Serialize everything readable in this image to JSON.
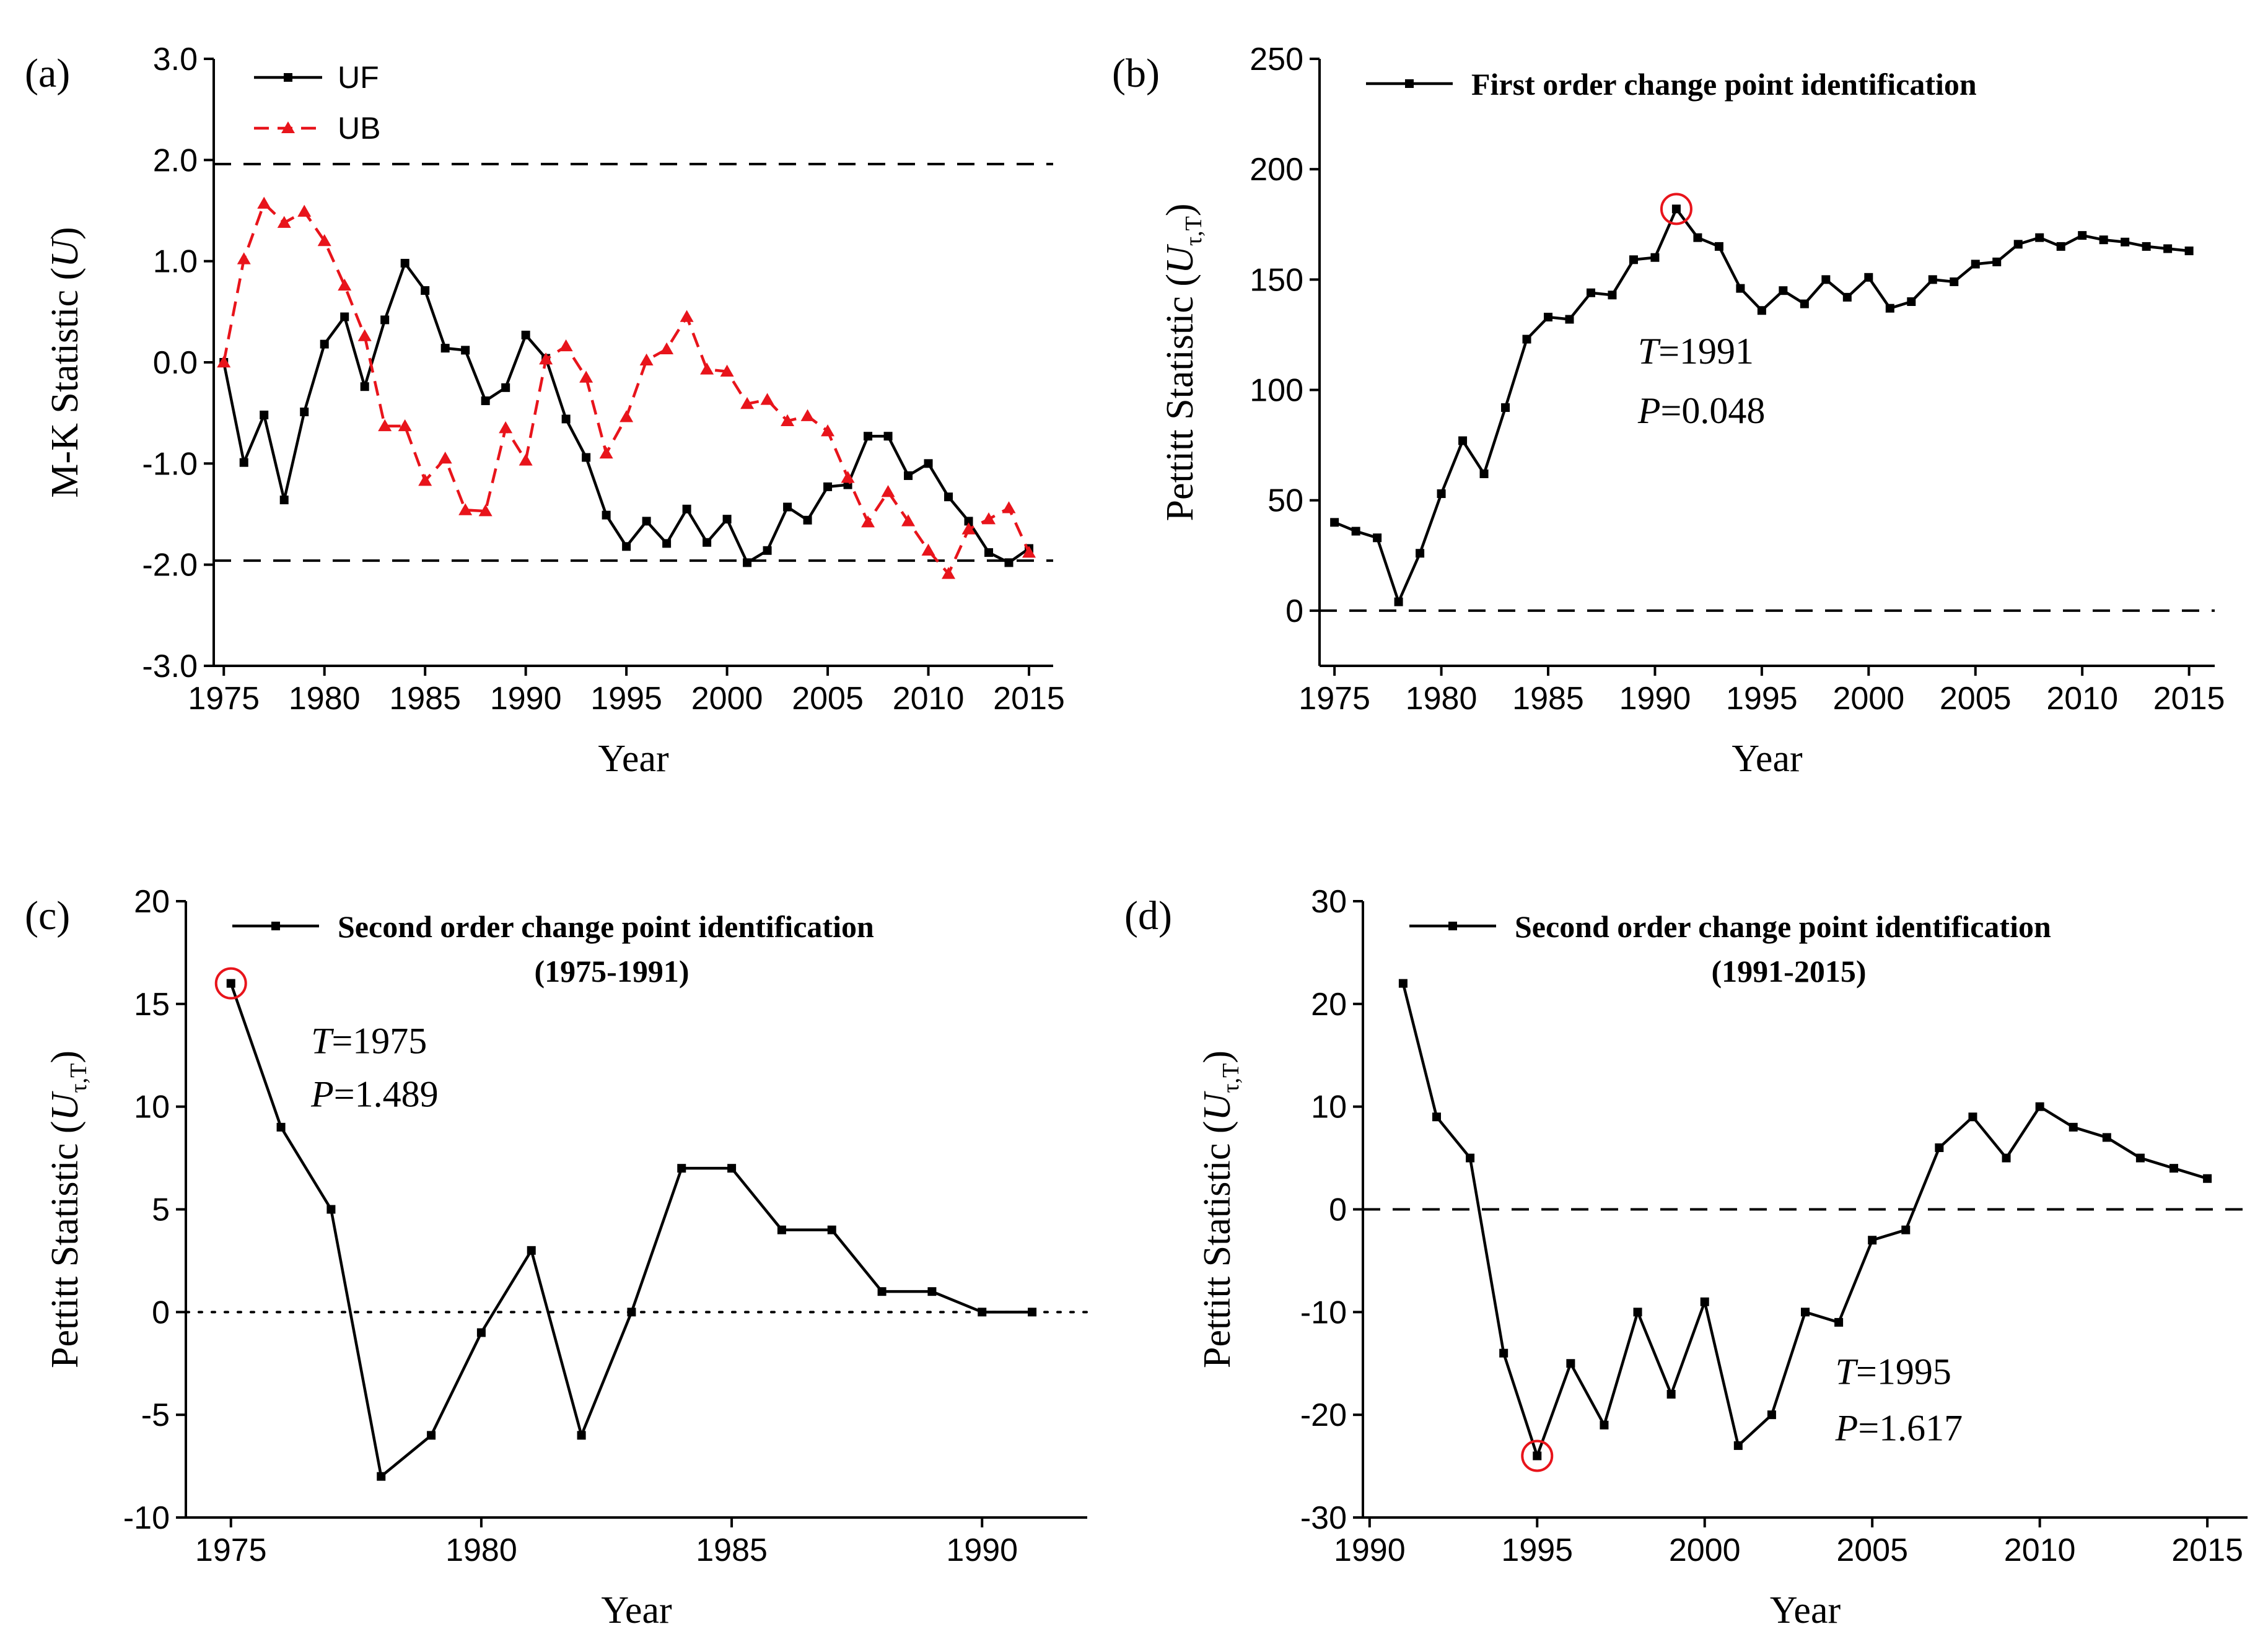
{
  "colors": {
    "uf": "#000000",
    "ub": "#e8141b",
    "marker_circle": "#e8141b"
  },
  "chart_data": [
    {
      "panel": "(a)",
      "type": "line",
      "xlabel": "Year",
      "ylabel_prefix": "M-K Statistic (",
      "ylabel_italic": "U",
      "ylabel_suffix": ")",
      "xlim": [
        1974.5,
        2016.2
      ],
      "ylim": [
        -3.0,
        3.0
      ],
      "xticks": [
        1975,
        1980,
        1985,
        1990,
        1995,
        2000,
        2005,
        2010,
        2015
      ],
      "yticks": [
        -3.0,
        -2.0,
        -1.0,
        0.0,
        1.0,
        2.0,
        3.0
      ],
      "ytick_labels": [
        "-3.0",
        "-2.0",
        "-1.0",
        "0.0",
        "1.0",
        "2.0",
        "3.0"
      ],
      "reference_lines": [
        1.96,
        -1.96
      ],
      "legend_position": "top-left",
      "series": [
        {
          "name": "UF",
          "style": "solid",
          "marker": "square",
          "x": [
            1975,
            1976,
            1977,
            1978,
            1979,
            1980,
            1981,
            1982,
            1983,
            1984,
            1985,
            1986,
            1987,
            1988,
            1989,
            1990,
            1991,
            1992,
            1993,
            1994,
            1995,
            1996,
            1997,
            1998,
            1999,
            2000,
            2001,
            2002,
            2003,
            2004,
            2005,
            2006,
            2007,
            2008,
            2009,
            2010,
            2011,
            2012,
            2013,
            2014,
            2015
          ],
          "y": [
            0.0,
            -0.99,
            -0.52,
            -1.36,
            -0.49,
            0.18,
            0.45,
            -0.24,
            0.42,
            0.98,
            0.71,
            0.14,
            0.12,
            -0.38,
            -0.25,
            0.27,
            0.04,
            -0.56,
            -0.94,
            -1.51,
            -1.82,
            -1.57,
            -1.79,
            -1.45,
            -1.78,
            -1.55,
            -1.98,
            -1.86,
            -1.43,
            -1.56,
            -1.23,
            -1.21,
            -0.73,
            -0.73,
            -1.12,
            -1.0,
            -1.33,
            -1.57,
            -1.88,
            -1.98,
            -1.84
          ]
        },
        {
          "name": "UB",
          "style": "dashed",
          "marker": "triangle",
          "x": [
            1975,
            1976,
            1977,
            1978,
            1979,
            1980,
            1981,
            1982,
            1983,
            1984,
            1985,
            1986,
            1987,
            1988,
            1989,
            1990,
            1991,
            1992,
            1993,
            1994,
            1995,
            1996,
            1997,
            1998,
            1999,
            2000,
            2001,
            2002,
            2003,
            2004,
            2005,
            2006,
            2007,
            2008,
            2009,
            2010,
            2011,
            2012,
            2013,
            2014,
            2015
          ],
          "y": [
            0.0,
            1.02,
            1.57,
            1.38,
            1.49,
            1.2,
            0.76,
            0.26,
            -0.63,
            -0.63,
            -1.17,
            -0.95,
            -1.46,
            -1.47,
            -0.65,
            -0.97,
            0.03,
            0.16,
            -0.15,
            -0.9,
            -0.54,
            0.02,
            0.13,
            0.45,
            -0.07,
            -0.09,
            -0.41,
            -0.37,
            -0.58,
            -0.53,
            -0.68,
            -1.14,
            -1.58,
            -1.28,
            -1.57,
            -1.86,
            -2.09,
            -1.65,
            -1.55,
            -1.44,
            -1.88
          ]
        }
      ]
    },
    {
      "panel": "(b)",
      "type": "line",
      "xlabel": "Year",
      "ylabel_prefix": "Pettitt Statistic (",
      "ylabel_italic": "U",
      "ylabel_sub": "τ,T",
      "ylabel_suffix": ")",
      "xlim": [
        1974.3,
        2016.2
      ],
      "ylim": [
        -25,
        250
      ],
      "xticks": [
        1975,
        1980,
        1985,
        1990,
        1995,
        2000,
        2005,
        2010,
        2015
      ],
      "yticks": [
        0,
        50,
        100,
        150,
        200,
        250
      ],
      "reference_lines": [
        0
      ],
      "legend_position": "top",
      "series": [
        {
          "name": "First order change point identification",
          "style": "solid",
          "marker": "square",
          "x": [
            1975,
            1976,
            1977,
            1978,
            1979,
            1980,
            1981,
            1982,
            1983,
            1984,
            1985,
            1986,
            1987,
            1988,
            1989,
            1990,
            1991,
            1992,
            1993,
            1994,
            1995,
            1996,
            1997,
            1998,
            1999,
            2000,
            2001,
            2002,
            2003,
            2004,
            2005,
            2006,
            2007,
            2008,
            2009,
            2010,
            2011,
            2012,
            2013,
            2014,
            2015
          ],
          "y": [
            40,
            36,
            33,
            4,
            26,
            53,
            77,
            62,
            92,
            123,
            133,
            132,
            144,
            143,
            159,
            160,
            182,
            169,
            165,
            146,
            136,
            145,
            139,
            150,
            142,
            151,
            137,
            140,
            150,
            149,
            157,
            158,
            166,
            169,
            165,
            170,
            168,
            167,
            165,
            164,
            163
          ]
        }
      ],
      "highlight": {
        "x": 1991,
        "y": 182
      },
      "annotation": {
        "t_label": "T",
        "t_value": "=1991",
        "p_label": "P",
        "p_value": "=0.048"
      }
    },
    {
      "panel": "(c)",
      "type": "line",
      "xlabel": "Year",
      "ylabel_prefix": "Pettitt Statistic (",
      "ylabel_italic": "U",
      "ylabel_sub": "τ,T",
      "ylabel_suffix": ")",
      "xlim": [
        1974.1,
        1992.1
      ],
      "ylim": [
        -10,
        20
      ],
      "xticks": [
        1975,
        1980,
        1985,
        1990
      ],
      "yticks": [
        -10,
        -5,
        0,
        5,
        10,
        15,
        20
      ],
      "reference_lines": [
        0
      ],
      "reference_style": "dotted",
      "legend_position": "top",
      "series": [
        {
          "name": "Second order change point identification",
          "name_line2": "(1975-1991)",
          "style": "solid",
          "marker": "square",
          "x": [
            1975,
            1976,
            1977,
            1978,
            1979,
            1980,
            1981,
            1982,
            1983,
            1984,
            1985,
            1986,
            1987,
            1988,
            1989,
            1990,
            1991
          ],
          "y": [
            16,
            9,
            5,
            -8,
            -6,
            -1,
            3,
            -6,
            0,
            7,
            7,
            4,
            4,
            1,
            1,
            0,
            0
          ]
        }
      ],
      "highlight": {
        "x": 1975,
        "y": 16
      },
      "annotation": {
        "t_label": "T",
        "t_value": "=1975",
        "p_label": "P",
        "p_value": "=1.489"
      }
    },
    {
      "panel": "(d)",
      "type": "line",
      "xlabel": "Year",
      "ylabel_prefix": "Pettitt Statistic (",
      "ylabel_italic": "U",
      "ylabel_sub": "τ,T",
      "ylabel_suffix": ")",
      "xlim": [
        1989.8,
        2016.2
      ],
      "ylim": [
        -30,
        30
      ],
      "xticks": [
        1990,
        1995,
        2000,
        2005,
        2010,
        2015
      ],
      "yticks": [
        -30,
        -20,
        -10,
        0,
        10,
        20,
        30
      ],
      "reference_lines": [
        0
      ],
      "legend_position": "top",
      "series": [
        {
          "name": "Second order change point identification",
          "name_line2": "(1991-2015)",
          "style": "solid",
          "marker": "square",
          "x": [
            1991,
            1992,
            1993,
            1994,
            1995,
            1996,
            1997,
            1998,
            1999,
            2000,
            2001,
            2002,
            2003,
            2004,
            2005,
            2006,
            2007,
            2008,
            2009,
            2010,
            2011,
            2012,
            2013,
            2014,
            2015
          ],
          "y": [
            22,
            9,
            5,
            -14,
            -24,
            -15,
            -21,
            -10,
            -18,
            -9,
            -23,
            -20,
            -10,
            -11,
            -3,
            -2,
            6,
            9,
            5,
            10,
            8,
            7,
            5,
            4,
            3
          ]
        }
      ],
      "highlight": {
        "x": 1995,
        "y": -24
      },
      "annotation": {
        "t_label": "T",
        "t_value": "=1995",
        "p_label": "P",
        "p_value": "=1.617"
      }
    }
  ]
}
